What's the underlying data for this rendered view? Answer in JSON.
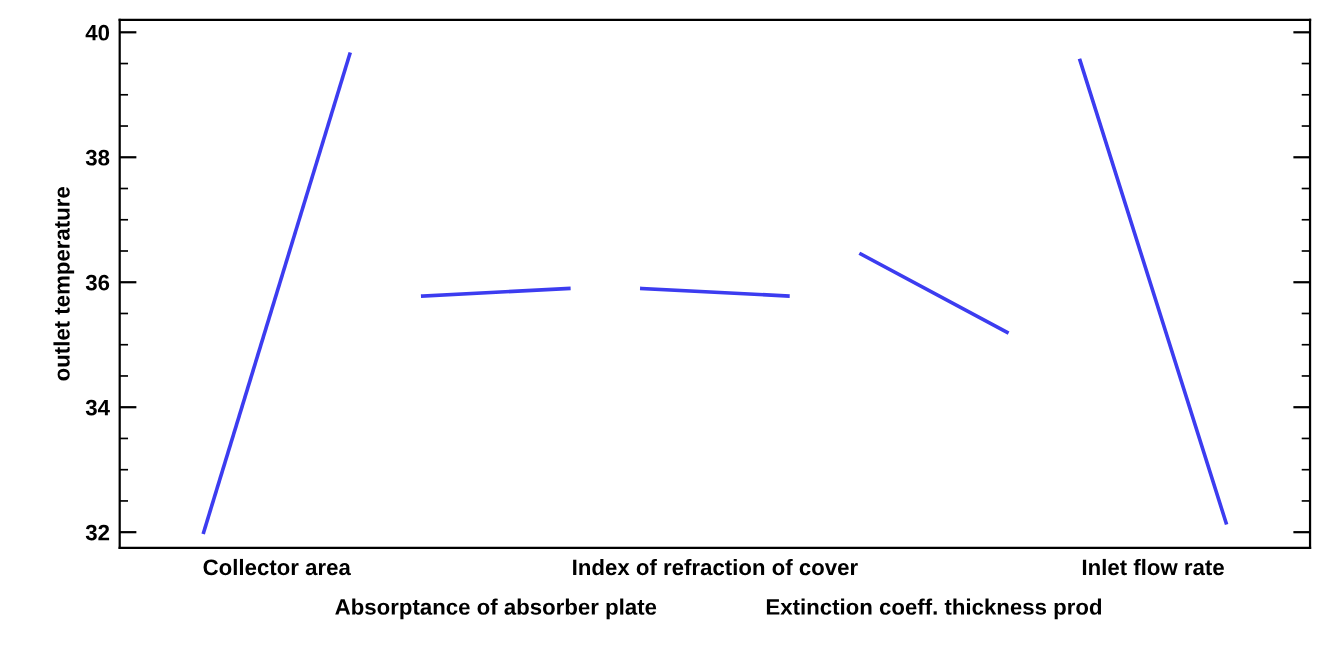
{
  "chart_data": {
    "type": "line",
    "ylabel": "outlet temperature",
    "categories": [
      null,
      "Collector area",
      null,
      null,
      "Absorptance of absorber plate",
      null,
      null,
      "Index of refraction of cover",
      null,
      null,
      "Extinction coeff. thickness prod",
      null,
      null,
      "Inlet flow rate",
      null
    ],
    "series": [
      {
        "color": "#3c3cf0",
        "values": [
          32.0,
          null,
          39.65,
          null,
          null,
          null,
          null,
          null,
          null,
          null,
          null,
          null,
          null,
          null,
          null
        ]
      },
      {
        "color": "#3c3cf0",
        "values": [
          null,
          null,
          null,
          35.78,
          null,
          35.9,
          null,
          null,
          null,
          null,
          null,
          null,
          null,
          null,
          null
        ]
      },
      {
        "color": "#3c3cf0",
        "values": [
          null,
          null,
          null,
          null,
          null,
          null,
          35.9,
          null,
          35.78,
          null,
          null,
          null,
          null,
          null,
          null
        ]
      },
      {
        "color": "#3c3cf0",
        "values": [
          null,
          null,
          null,
          null,
          null,
          null,
          null,
          null,
          null,
          36.45,
          null,
          35.2,
          null,
          null,
          null
        ]
      },
      {
        "color": "#3c3cf0",
        "values": [
          null,
          null,
          null,
          null,
          null,
          null,
          null,
          null,
          null,
          null,
          null,
          null,
          39.55,
          null,
          32.15
        ]
      }
    ],
    "ylim": [
      31.75,
      40.2
    ],
    "yticks": [
      32,
      34,
      36,
      38,
      40
    ],
    "grid": false,
    "legend": false,
    "marker": "none",
    "line_style": "solid"
  }
}
